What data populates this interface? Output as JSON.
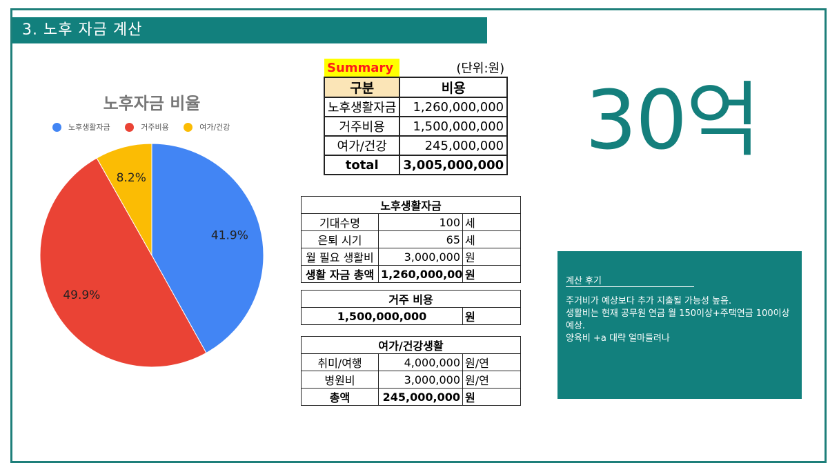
{
  "slide": {
    "title": "3. 노후 자금 계산",
    "big_text": "30억"
  },
  "chart_data": {
    "type": "pie",
    "title": "노후자금 비율",
    "legend_position": "top",
    "categories": [
      "노후생활자금",
      "거주비용",
      "여가/건강"
    ],
    "values": [
      41.9,
      49.9,
      8.2
    ],
    "labels": [
      "41.9%",
      "49.9%",
      "8.2%"
    ],
    "colors": [
      "#4285f4",
      "#ea4335",
      "#fbbc04"
    ]
  },
  "summary": {
    "tag": "Summary",
    "unit": "(단위:원)",
    "headers": [
      "구분",
      "비용"
    ],
    "rows": [
      [
        "노후생활자금",
        "1,260,000,000"
      ],
      [
        "거주비용",
        "1,500,000,000"
      ],
      [
        "여가/건강",
        "245,000,000"
      ]
    ],
    "total_label": "total",
    "total_value": "3,005,000,000"
  },
  "living": {
    "title": "노후생활자금",
    "rows": [
      [
        "기대수명",
        "100",
        "세"
      ],
      [
        "은퇴 시기",
        "65",
        "세"
      ],
      [
        "월 필요 생활비",
        "3,000,000",
        "원"
      ]
    ],
    "total": [
      "생활 자금 총액",
      "1,260,000,000",
      "원"
    ]
  },
  "housing": {
    "title": "거주 비용",
    "value": "1,500,000,000",
    "unit": "원"
  },
  "leisure": {
    "title": "여가/건강생활",
    "rows": [
      [
        "취미/여행",
        "4,000,000",
        "원/연"
      ],
      [
        "병원비",
        "3,000,000",
        "원/연"
      ]
    ],
    "total": [
      "총액",
      "245,000,000",
      "원"
    ]
  },
  "review": {
    "title": "계산 후기",
    "lines": [
      "주거비가 예상보다 추가 지출될 가능성 높음.",
      "생활비는 현재 공무원 연금 월 150이상+주택연금 100이상 예상.",
      "양육비 +a 대략 얼마들려나"
    ]
  }
}
